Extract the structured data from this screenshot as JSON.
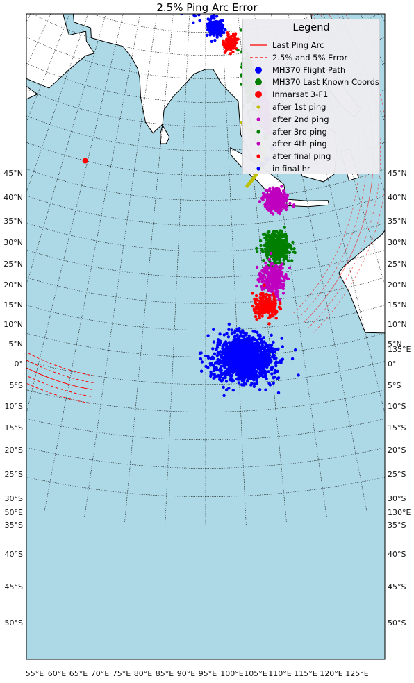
{
  "title": "2.5% Ping Arc Error",
  "colors": {
    "ocean": "#add8e6",
    "land": "#ffffff",
    "coast": "#000000",
    "arc": "#ff0000"
  },
  "legend": {
    "title": "Legend",
    "items": [
      {
        "label": "Last Ping Arc",
        "symbol": "line",
        "color": "#ff0000"
      },
      {
        "label": "2.5% and 5% Error",
        "symbol": "dashed",
        "color": "#ff0000"
      },
      {
        "label": "MH370 Flight Path",
        "symbol": "big-dot",
        "color": "#0000ff"
      },
      {
        "label": "MH370 Last Known Coords",
        "symbol": "big-dot",
        "color": "#007f00"
      },
      {
        "label": "Inmarsat 3-F1",
        "symbol": "big-dot",
        "color": "#ff0000"
      },
      {
        "label": "after 1st ping",
        "symbol": "small-dot",
        "color": "#bfbf00"
      },
      {
        "label": "after 2nd ping",
        "symbol": "small-dot",
        "color": "#bf00bf"
      },
      {
        "label": "after 3rd ping",
        "symbol": "small-dot",
        "color": "#007f00"
      },
      {
        "label": "after 4th ping",
        "symbol": "small-dot",
        "color": "#bf00bf"
      },
      {
        "label": "after final ping",
        "symbol": "small-dot",
        "color": "#ff0000"
      },
      {
        "label": "in final hr",
        "symbol": "small-dot",
        "color": "#0000ff"
      }
    ]
  },
  "lat_labels": [
    "45°N",
    "40°N",
    "35°N",
    "30°N",
    "25°N",
    "20°N",
    "15°N",
    "10°N",
    "5°N",
    "0°",
    "5°S",
    "10°S",
    "15°S",
    "20°S",
    "25°S",
    "30°S",
    "35°S",
    "40°S",
    "45°S",
    "50°S"
  ],
  "lon_labels": [
    "55°E",
    "60°E",
    "65°E",
    "70°E",
    "75°E",
    "80°E",
    "85°E",
    "90°E",
    "95°E",
    "100°E",
    "105°E",
    "110°E",
    "115°E",
    "120°E",
    "125°E"
  ],
  "extra_labels": {
    "right_lon": "135°E",
    "left_lon": "50°E",
    "right_lon2": "130°E"
  },
  "markers": {
    "inmarsat": {
      "lat": 0,
      "lon": 64.5
    },
    "last_known": {
      "lat": 6.9,
      "lon": 103.6
    }
  },
  "regions": [
    {
      "name": "northern",
      "center": [
        39.5,
        86
      ],
      "spread": [
        3.6,
        3.5
      ],
      "color": "#0000ff",
      "count": 1400
    },
    {
      "name": "southern",
      "center": [
        -35.5,
        96
      ],
      "spread": [
        3.6,
        4.0
      ],
      "color": "#0000ff",
      "count": 1500
    },
    {
      "name": "north-blue-trail",
      "center": [
        31,
        93
      ],
      "spread": [
        2.0,
        2.0
      ],
      "color": "#0000ff",
      "count": 160
    },
    {
      "name": "north-red",
      "center": [
        27.5,
        97
      ],
      "spread": [
        1.5,
        1.5
      ],
      "color": "#ff0000",
      "count": 140
    },
    {
      "name": "north-green",
      "center": [
        19.5,
        101
      ],
      "spread": [
        4.5,
        1.2
      ],
      "color": "#007f00",
      "count": 320
    },
    {
      "name": "north-magenta",
      "center": [
        12.5,
        104
      ],
      "spread": [
        4.0,
        1.0
      ],
      "color": "#bf00bf",
      "count": 260
    },
    {
      "name": "south-magenta",
      "center": [
        -6,
        104
      ],
      "spread": [
        2.0,
        2.0
      ],
      "color": "#bf00bf",
      "count": 350
    },
    {
      "name": "south-green",
      "center": [
        -15,
        103
      ],
      "spread": [
        2.6,
        2.0
      ],
      "color": "#007f00",
      "count": 420
    },
    {
      "name": "south-magenta-2",
      "center": [
        -21,
        101.5
      ],
      "spread": [
        2.5,
        1.8
      ],
      "color": "#bf00bf",
      "count": 320
    },
    {
      "name": "south-red",
      "center": [
        -26,
        100
      ],
      "spread": [
        2.0,
        1.8
      ],
      "color": "#ff0000",
      "count": 200
    }
  ]
}
